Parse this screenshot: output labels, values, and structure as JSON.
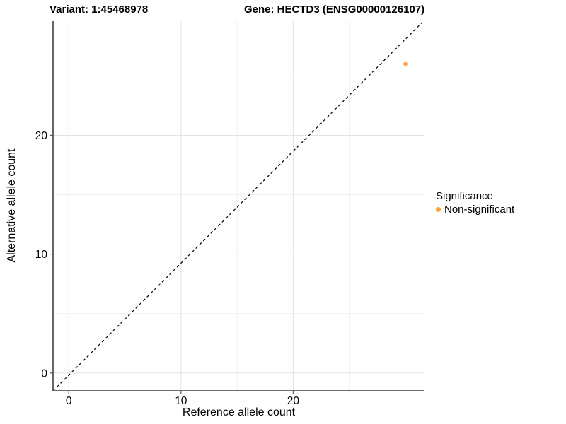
{
  "figure": {
    "title_left": "Variant: 1:45468978",
    "title_right": "Gene: HECTD3 (ENSG00000126107)"
  },
  "chart_data": {
    "type": "scatter",
    "title": "Variant: 1:45468978   Gene: HECTD3 (ENSG00000126107)",
    "xlabel": "Reference allele count",
    "ylabel": "Alternative allele count",
    "xlim": [
      -1.4,
      31.7
    ],
    "ylim": [
      -1.5,
      29.6
    ],
    "x_ticks": [
      0,
      10,
      20
    ],
    "y_ticks": [
      0,
      10,
      20
    ],
    "x_minor_ticks": [
      5,
      15,
      25
    ],
    "y_minor_ticks": [
      5,
      15,
      25
    ],
    "grid": true,
    "points": [
      {
        "x": 30,
        "y": 26,
        "series": "Non-significant"
      }
    ],
    "reference_line": {
      "description": "dashed identity line y = x",
      "x1": -1.4,
      "y1": -1.5,
      "x2": 31.5,
      "y2": 29.5,
      "style": "dashed",
      "color": "#000000"
    },
    "legend": {
      "title": "Significance",
      "position": "right",
      "entries": [
        {
          "label": "Non-significant",
          "color": "#FFA430"
        }
      ]
    },
    "colors": {
      "point": "#FFA430",
      "grid_major": "#e3e3e3",
      "grid_minor": "#efefef",
      "axis": "#555555",
      "text": "#000000"
    }
  }
}
